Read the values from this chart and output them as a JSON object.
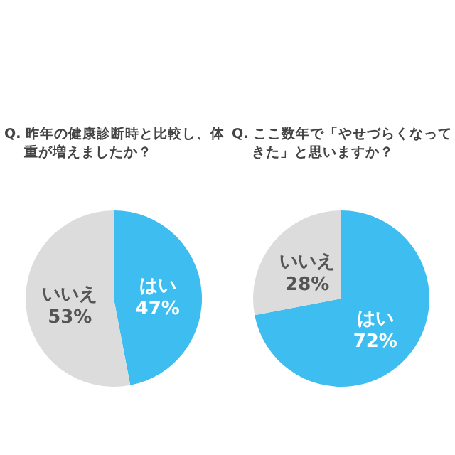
{
  "chart_data": [
    {
      "type": "pie",
      "title": "Q. 昨年の健康診断時と比較し、体重が増えましたか？",
      "categories": [
        "はい",
        "いいえ"
      ],
      "values": [
        47,
        53
      ],
      "colors": [
        "#3dbdf0",
        "#dcdcdc"
      ],
      "value_labels": [
        "47%",
        "53%"
      ]
    },
    {
      "type": "pie",
      "title": "Q. ここ数年で「やせづらくなってきた」と思いますか？",
      "categories": [
        "はい",
        "いいえ"
      ],
      "values": [
        72,
        28
      ],
      "colors": [
        "#3dbdf0",
        "#dcdcdc"
      ],
      "value_labels": [
        "72%",
        "28%"
      ]
    }
  ]
}
